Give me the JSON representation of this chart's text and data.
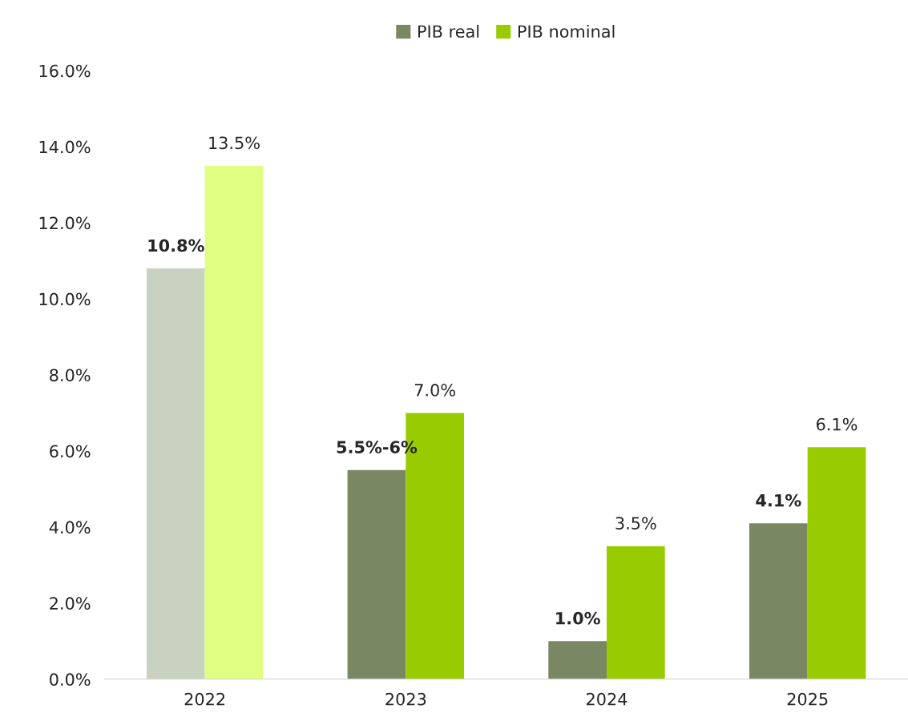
{
  "chart_data": {
    "type": "bar",
    "categories": [
      "2022",
      "2023",
      "2024",
      "2025"
    ],
    "series": [
      {
        "name": "PIB real",
        "color": "#7a8763",
        "colors": [
          "#c9d1bf",
          "#7a8763",
          "#7a8763",
          "#7a8763"
        ],
        "values": [
          10.8,
          5.5,
          1.0,
          4.1
        ],
        "value_labels": [
          "10.8%",
          "5.5%-6%",
          "1.0%",
          "4.1%"
        ]
      },
      {
        "name": "PIB nominal",
        "color": "#99cc00",
        "colors": [
          "#dfff80",
          "#99cc00",
          "#99cc00",
          "#99cc00"
        ],
        "values": [
          13.5,
          7.0,
          3.5,
          6.1
        ],
        "value_labels": [
          "13.5%",
          "7.0%",
          "3.5%",
          "6.1%"
        ]
      }
    ],
    "ylim": [
      0,
      16
    ],
    "yticks": [
      {
        "value": 0,
        "label": "0.0%"
      },
      {
        "value": 2,
        "label": "2.0%"
      },
      {
        "value": 4,
        "label": "4.0%"
      },
      {
        "value": 6,
        "label": "6.0%"
      },
      {
        "value": 8,
        "label": "8.0%"
      },
      {
        "value": 10,
        "label": "10.0%"
      },
      {
        "value": 12,
        "label": "12.0%"
      },
      {
        "value": 14,
        "label": "14.0%"
      },
      {
        "value": 16,
        "label": "16.0%"
      }
    ],
    "grid": false,
    "legend": "top"
  }
}
